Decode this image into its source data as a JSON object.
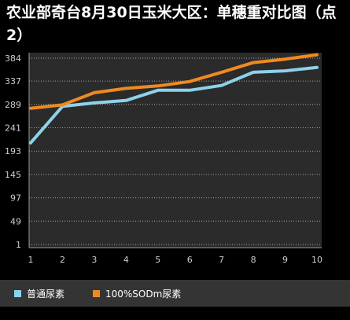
{
  "chart_data": {
    "type": "line",
    "title": "农业部奇台8月30日玉米大区：单穗重对比图（点2）",
    "xlabel": "",
    "ylabel": "",
    "x": [
      1,
      2,
      3,
      4,
      5,
      6,
      7,
      8,
      9,
      10
    ],
    "yticks": [
      1,
      49,
      97,
      145,
      193,
      241,
      289,
      337,
      384
    ],
    "ylim": [
      1,
      384
    ],
    "grid": true,
    "legend_position": "bottom",
    "series": [
      {
        "name": "普通尿素",
        "color": "#8ed2ea",
        "values": [
          210,
          285,
          292,
          297,
          318,
          318,
          328,
          355,
          358,
          365
        ]
      },
      {
        "name": "100%SODm尿素",
        "color": "#ef8a21",
        "values": [
          281,
          288,
          313,
          322,
          327,
          336,
          355,
          375,
          382,
          391
        ]
      }
    ]
  },
  "colors": {
    "background": "#000000",
    "plot_background": "#2b2b2b",
    "axis_text": "#cfcfcf",
    "legend_background": "#343434"
  }
}
